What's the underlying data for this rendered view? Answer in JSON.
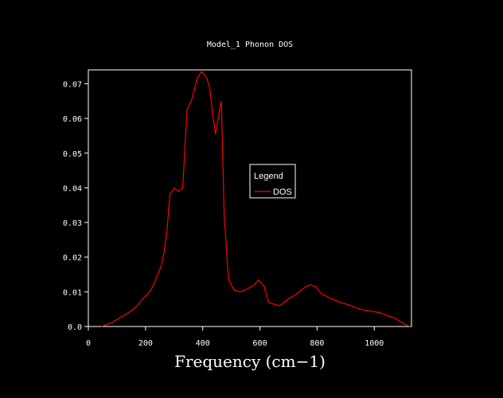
{
  "chart_data": {
    "type": "line",
    "title": "Model_1 Phonon DOS",
    "xlabel": "Frequency (cm−1)",
    "ylabel": "",
    "xlim": [
      0,
      1130
    ],
    "ylim": [
      0,
      0.074
    ],
    "x_ticks": [
      0,
      200,
      400,
      600,
      800,
      1000
    ],
    "x_tick_labels": [
      "0",
      "200",
      "400",
      "600",
      "800",
      "1000"
    ],
    "y_ticks": [
      0.0,
      0.01,
      0.02,
      0.03,
      0.04,
      0.05,
      0.06,
      0.07
    ],
    "y_tick_labels": [
      "0.0",
      "0.01",
      "0.02",
      "0.03",
      "0.04",
      "0.05",
      "0.06",
      "0.07"
    ],
    "grid": false,
    "legend": {
      "title": "Legend",
      "placement": "center-right"
    },
    "background": "#000000",
    "axis_color": "#ffffff",
    "series": [
      {
        "name": "DOS",
        "color": "#ff0000",
        "x": [
          45,
          80,
          120,
          150,
          170,
          190,
          210,
          225,
          240,
          255,
          265,
          275,
          285,
          300,
          315,
          330,
          345,
          360,
          370,
          380,
          395,
          405,
          415,
          425,
          435,
          445,
          455,
          465,
          475,
          490,
          510,
          530,
          560,
          580,
          595,
          605,
          615,
          630,
          645,
          670,
          700,
          730,
          760,
          775,
          795,
          815,
          850,
          880,
          920,
          950,
          980,
          1020,
          1050,
          1070,
          1090,
          1110,
          1125
        ],
        "y": [
          0.0,
          0.001,
          0.003,
          0.0045,
          0.006,
          0.008,
          0.0095,
          0.0115,
          0.0145,
          0.0175,
          0.0215,
          0.0275,
          0.038,
          0.04,
          0.039,
          0.04,
          0.0625,
          0.065,
          0.068,
          0.0715,
          0.0735,
          0.0728,
          0.0715,
          0.0685,
          0.061,
          0.0555,
          0.0605,
          0.065,
          0.032,
          0.0135,
          0.0105,
          0.01,
          0.011,
          0.012,
          0.0135,
          0.0125,
          0.0115,
          0.007,
          0.0065,
          0.006,
          0.008,
          0.0095,
          0.0115,
          0.012,
          0.0115,
          0.0095,
          0.008,
          0.007,
          0.006,
          0.005,
          0.0045,
          0.004,
          0.003,
          0.0025,
          0.0015,
          0.0005,
          0.0
        ]
      }
    ]
  }
}
